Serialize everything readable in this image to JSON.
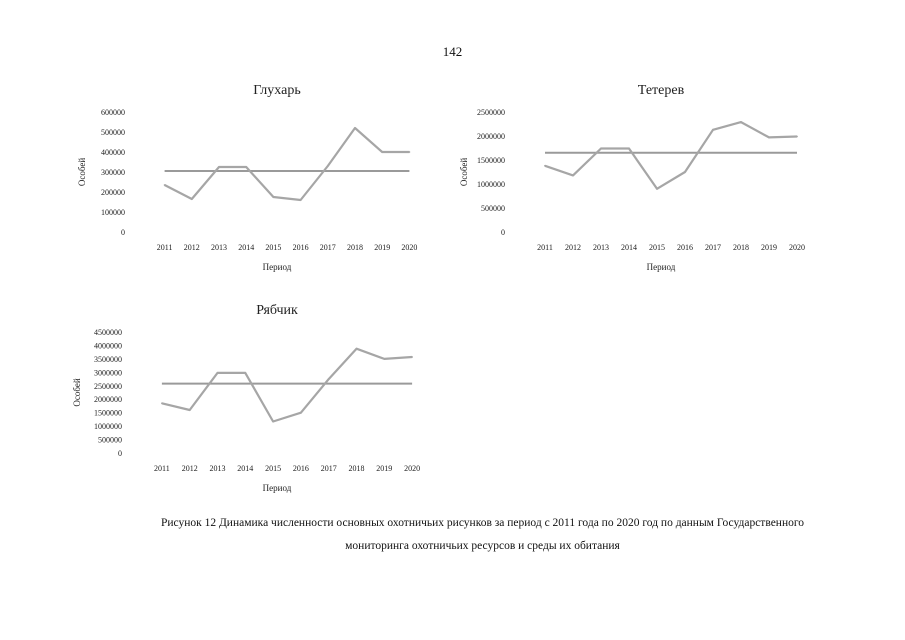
{
  "page": {
    "number": "142"
  },
  "caption": {
    "line1": "Рисунок 12 Динамика численности основных охотничьих рисунков за период с 2011 года по 2020 год по данным Государственного",
    "line2": "мониторинга охотничьих ресурсов и среды их обитания"
  },
  "chart_data": [
    {
      "type": "line",
      "title": "Глухарь",
      "xlabel": "Период",
      "ylabel": "Особей",
      "categories": [
        "2011",
        "2012",
        "2013",
        "2014",
        "2015",
        "2016",
        "2017",
        "2018",
        "2019",
        "2020"
      ],
      "y_ticks": [
        "0",
        "100000",
        "200000",
        "300000",
        "400000",
        "500000",
        "600000"
      ],
      "ylim": [
        0,
        600000
      ],
      "series": [
        {
          "values": [
            235000,
            165000,
            325000,
            325000,
            175000,
            160000,
            330000,
            520000,
            400000,
            400000
          ]
        }
      ],
      "reference_line": 305000,
      "grid": false,
      "colors": {
        "series": "#a6a6a6",
        "reference": "#9a9a9a"
      }
    },
    {
      "type": "line",
      "title": "Тетерев",
      "xlabel": "Период",
      "ylabel": "Особей",
      "categories": [
        "2011",
        "2012",
        "2013",
        "2014",
        "2015",
        "2016",
        "2017",
        "2018",
        "2019",
        "2020"
      ],
      "y_ticks": [
        "0",
        "500000",
        "1000000",
        "1500000",
        "2000000",
        "2500000"
      ],
      "ylim": [
        0,
        2500000
      ],
      "series": [
        {
          "values": [
            1380000,
            1180000,
            1740000,
            1740000,
            900000,
            1250000,
            2130000,
            2290000,
            1970000,
            1990000
          ]
        }
      ],
      "reference_line": 1650000,
      "grid": false,
      "colors": {
        "series": "#a6a6a6",
        "reference": "#9a9a9a"
      }
    },
    {
      "type": "line",
      "title": "Рябчик",
      "xlabel": "Период",
      "ylabel": "Особей",
      "categories": [
        "2011",
        "2012",
        "2013",
        "2014",
        "2015",
        "2016",
        "2017",
        "2018",
        "2019",
        "2020"
      ],
      "y_ticks": [
        "0",
        "500000",
        "1000000",
        "1500000",
        "2000000",
        "2500000",
        "3000000",
        "3500000",
        "4000000",
        "4500000"
      ],
      "ylim": [
        0,
        4500000
      ],
      "series": [
        {
          "values": [
            1850000,
            1600000,
            2980000,
            2980000,
            1170000,
            1500000,
            2750000,
            3880000,
            3500000,
            3570000
          ]
        }
      ],
      "reference_line": 2580000,
      "grid": false,
      "colors": {
        "series": "#a6a6a6",
        "reference": "#9a9a9a"
      }
    }
  ]
}
